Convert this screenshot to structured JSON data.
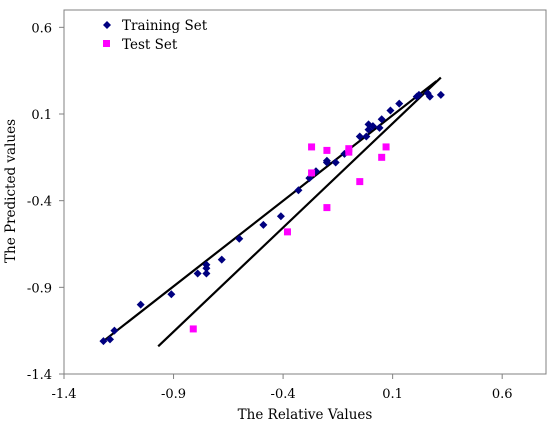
{
  "chart_data": {
    "type": "scatter",
    "xlabel": "The Relative Values",
    "ylabel": "The Predicted values",
    "xlim": [
      -1.4,
      0.8
    ],
    "ylim": [
      -1.4,
      0.7
    ],
    "xticks": [
      -1.4,
      -0.9,
      -0.4,
      0.1,
      0.6
    ],
    "yticks": [
      -1.4,
      -0.9,
      -0.4,
      0.1,
      0.6
    ],
    "xtick_labels": [
      "-1.4",
      "-0.9",
      "-0.4",
      "0.1",
      "0.6"
    ],
    "ytick_labels": [
      "-1.4",
      "-0.9",
      "-0.4",
      "0.1",
      "0.6"
    ],
    "grid": false,
    "legend_position": "top-left",
    "series": [
      {
        "name": "Training Set",
        "marker": "diamond",
        "color": "#000080",
        "points": [
          [
            -1.22,
            -1.21
          ],
          [
            -1.19,
            -1.2
          ],
          [
            -1.17,
            -1.15
          ],
          [
            -1.05,
            -1.0
          ],
          [
            -0.91,
            -0.94
          ],
          [
            -0.79,
            -0.82
          ],
          [
            -0.75,
            -0.82
          ],
          [
            -0.75,
            -0.77
          ],
          [
            -0.75,
            -0.79
          ],
          [
            -0.68,
            -0.74
          ],
          [
            -0.6,
            -0.62
          ],
          [
            -0.49,
            -0.54
          ],
          [
            -0.41,
            -0.49
          ],
          [
            -0.33,
            -0.34
          ],
          [
            -0.28,
            -0.27
          ],
          [
            -0.25,
            -0.23
          ],
          [
            -0.2,
            -0.18
          ],
          [
            -0.2,
            -0.17
          ],
          [
            -0.16,
            -0.18
          ],
          [
            -0.12,
            -0.13
          ],
          [
            -0.05,
            -0.03
          ],
          [
            -0.02,
            -0.03
          ],
          [
            -0.01,
            0.01
          ],
          [
            -0.01,
            0.04
          ],
          [
            0.01,
            0.03
          ],
          [
            0.04,
            0.02
          ],
          [
            0.05,
            0.07
          ],
          [
            0.09,
            0.12
          ],
          [
            0.13,
            0.16
          ],
          [
            0.21,
            0.2
          ],
          [
            0.22,
            0.21
          ],
          [
            0.26,
            0.22
          ],
          [
            0.27,
            0.2
          ],
          [
            0.32,
            0.21
          ]
        ]
      },
      {
        "name": "Test Set",
        "marker": "square",
        "color": "#ff00ff",
        "points": [
          [
            -0.81,
            -1.14
          ],
          [
            -0.38,
            -0.58
          ],
          [
            -0.27,
            -0.09
          ],
          [
            -0.27,
            -0.24
          ],
          [
            -0.2,
            -0.11
          ],
          [
            -0.2,
            -0.44
          ],
          [
            -0.1,
            -0.12
          ],
          [
            -0.1,
            -0.1
          ],
          [
            -0.05,
            -0.29
          ],
          [
            0.05,
            -0.15
          ],
          [
            0.07,
            -0.09
          ]
        ]
      }
    ],
    "lines": [
      {
        "name": "",
        "x": [
          -1.22,
          0.3
        ],
        "y": [
          -1.21,
          0.29
        ],
        "color": "#000000"
      },
      {
        "name": "",
        "x": [
          -0.97,
          0.32
        ],
        "y": [
          -1.24,
          0.31
        ],
        "color": "#000000"
      }
    ]
  }
}
